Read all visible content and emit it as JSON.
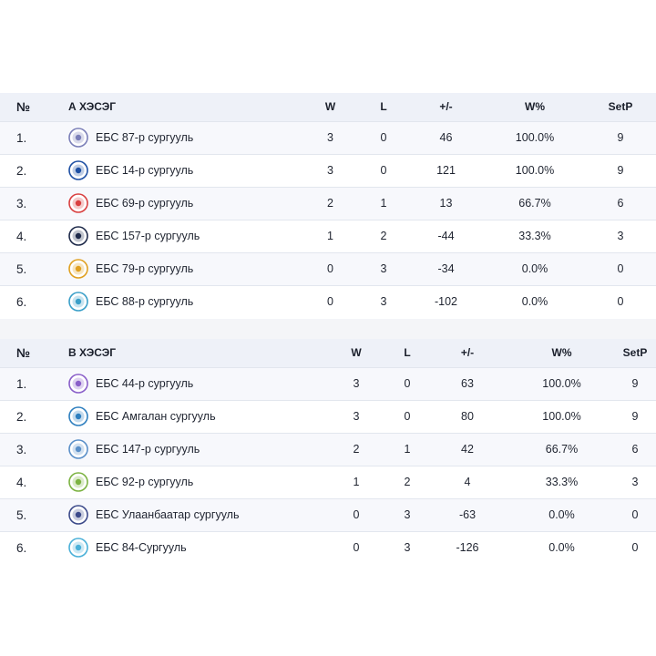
{
  "groups": [
    {
      "header": {
        "num": "№",
        "name": "А ХЭСЭГ",
        "w": "W",
        "l": "L",
        "diff": "+/-",
        "pct": "W%",
        "setp": "SetP"
      },
      "rows": [
        {
          "rank": "1.",
          "team": "ЕБС 87-р сургууль",
          "w": "3",
          "l": "0",
          "diff": "46",
          "pct": "100.0%",
          "setp": "9",
          "logo_color": "#7b7fb8"
        },
        {
          "rank": "2.",
          "team": "ЕБС 14-р сургууль",
          "w": "3",
          "l": "0",
          "diff": "121",
          "pct": "100.0%",
          "setp": "9",
          "logo_color": "#1d4fa3"
        },
        {
          "rank": "3.",
          "team": "ЕБС 69-р сургууль",
          "w": "2",
          "l": "1",
          "diff": "13",
          "pct": "66.7%",
          "setp": "6",
          "logo_color": "#d94040"
        },
        {
          "rank": "4.",
          "team": "ЕБС 157-р сургууль",
          "w": "1",
          "l": "2",
          "diff": "-44",
          "pct": "33.3%",
          "setp": "3",
          "logo_color": "#1e2a4a"
        },
        {
          "rank": "5.",
          "team": "ЕБС 79-р сургууль",
          "w": "0",
          "l": "3",
          "diff": "-34",
          "pct": "0.0%",
          "setp": "0",
          "logo_color": "#e0a020"
        },
        {
          "rank": "6.",
          "team": "ЕБС 88-р сургууль",
          "w": "0",
          "l": "3",
          "diff": "-102",
          "pct": "0.0%",
          "setp": "0",
          "logo_color": "#3a9fc8"
        }
      ]
    },
    {
      "header": {
        "num": "№",
        "name": "В ХЭСЭГ",
        "w": "W",
        "l": "L",
        "diff": "+/-",
        "pct": "W%",
        "setp": "SetP"
      },
      "rows": [
        {
          "rank": "1.",
          "team": "ЕБС 44-р сургууль",
          "w": "3",
          "l": "0",
          "diff": "63",
          "pct": "100.0%",
          "setp": "9",
          "logo_color": "#8a5fc9"
        },
        {
          "rank": "2.",
          "team": "ЕБС Амгалан сургууль",
          "w": "3",
          "l": "0",
          "diff": "80",
          "pct": "100.0%",
          "setp": "9",
          "logo_color": "#2e7fbf"
        },
        {
          "rank": "3.",
          "team": "ЕБС 147-р сургууль",
          "w": "2",
          "l": "1",
          "diff": "42",
          "pct": "66.7%",
          "setp": "6",
          "logo_color": "#5a8fc8"
        },
        {
          "rank": "4.",
          "team": "ЕБС 92-р сургууль",
          "w": "1",
          "l": "2",
          "diff": "4",
          "pct": "33.3%",
          "setp": "3",
          "logo_color": "#7cb342"
        },
        {
          "rank": "5.",
          "team": "ЕБС Улаанбаатар сургууль",
          "w": "0",
          "l": "3",
          "diff": "-63",
          "pct": "0.0%",
          "setp": "0",
          "logo_color": "#3c4a8a"
        },
        {
          "rank": "6.",
          "team": "ЕБС 84-Сургууль",
          "w": "0",
          "l": "3",
          "diff": "-126",
          "pct": "0.0%",
          "setp": "0",
          "logo_color": "#4ab0d8"
        }
      ]
    }
  ]
}
